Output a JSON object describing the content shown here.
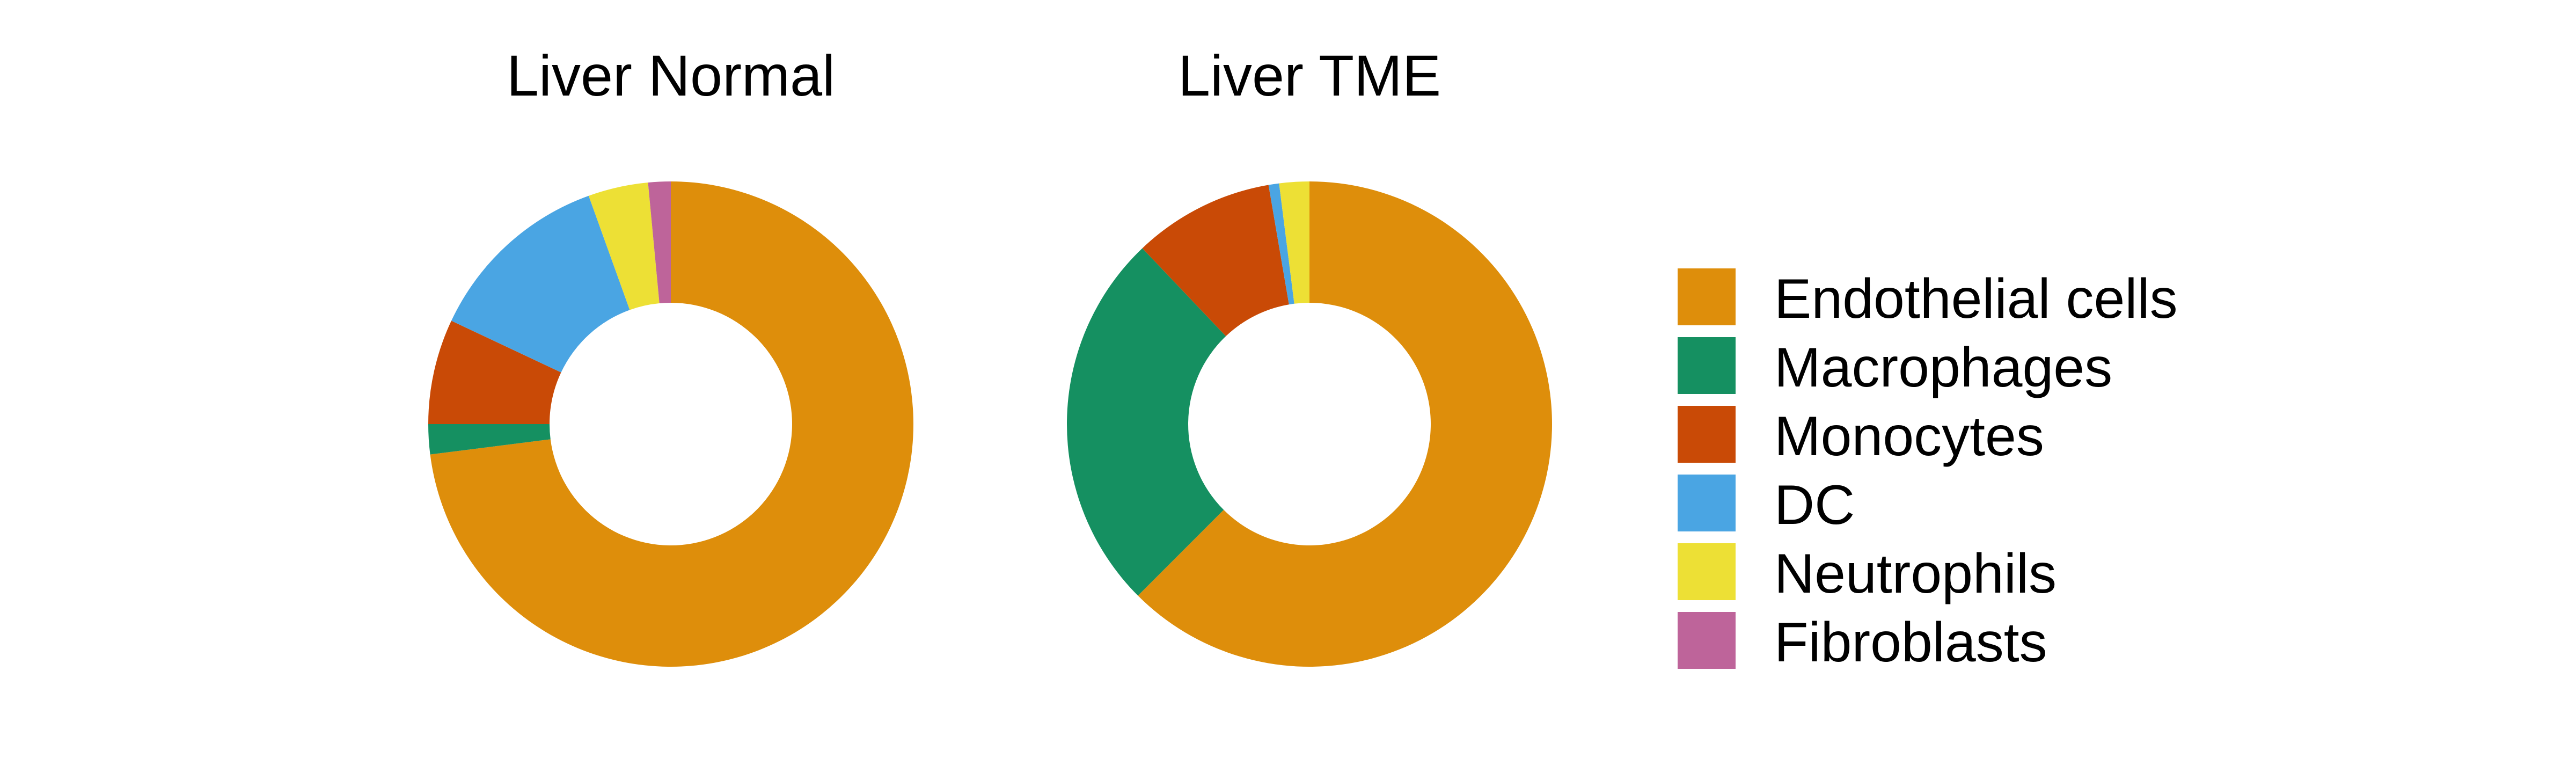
{
  "chart_data": [
    {
      "type": "pie",
      "title": "Liver Normal",
      "categories": [
        "Endothelial cells",
        "Macrophages",
        "Monocytes",
        "DC",
        "Neutrophils",
        "Fibroblasts"
      ],
      "values": [
        73,
        2,
        7,
        12.5,
        4,
        1.5
      ],
      "colors": [
        "#DE8E0B",
        "#159061",
        "#C94A06",
        "#4AA5E3",
        "#EDE035",
        "#BE649A"
      ]
    },
    {
      "type": "pie",
      "title": "Liver TME",
      "categories": [
        "Endothelial cells",
        "Macrophages",
        "Monocytes",
        "DC",
        "Neutrophils",
        "Fibroblasts"
      ],
      "values": [
        62.5,
        25.4,
        9.4,
        0.7,
        2,
        0
      ],
      "colors": [
        "#DE8E0B",
        "#159061",
        "#C94A06",
        "#4AA5E3",
        "#EDE035",
        "#BE649A"
      ]
    }
  ],
  "legend": {
    "items": [
      {
        "label": "Endothelial cells",
        "color": "#DE8E0B"
      },
      {
        "label": "Macrophages",
        "color": "#159061"
      },
      {
        "label": "Monocytes",
        "color": "#C94A06"
      },
      {
        "label": "DC",
        "color": "#4AA5E3"
      },
      {
        "label": "Neutrophils",
        "color": "#EDE035"
      },
      {
        "label": "Fibroblasts",
        "color": "#BE649A"
      }
    ]
  }
}
